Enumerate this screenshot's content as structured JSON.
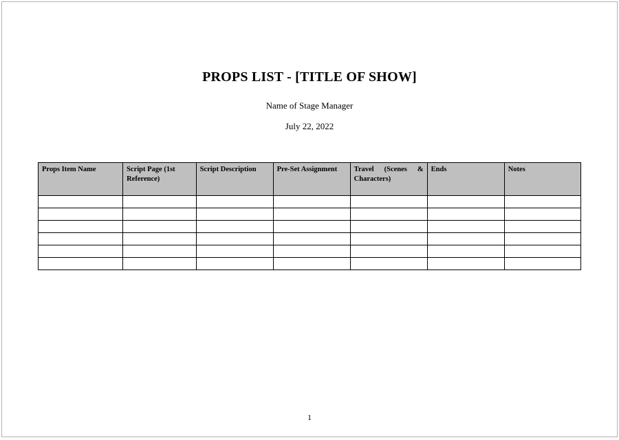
{
  "title": "PROPS LIST - [TITLE OF SHOW]",
  "subtitle": "Name of Stage Manager",
  "date": "July 22, 2022",
  "page_number": "1",
  "table": {
    "type": "table",
    "header_background": "#bfbfbf",
    "border_color": "#000000",
    "background_color": "#ffffff",
    "header_fontsize": 10.5,
    "header_fontweight": "bold",
    "columns": [
      {
        "label": "Props Item Name",
        "width_pct": 15.6
      },
      {
        "label": "Script Page (1st Reference)",
        "width_pct": 13.5
      },
      {
        "label": "Script Description",
        "width_pct": 14.2
      },
      {
        "label": "Pre-Set Assignment",
        "width_pct": 14.2
      },
      {
        "label": "Travel (Scenes & Characters)",
        "width_pct": 14.2,
        "justify": true
      },
      {
        "label": "Ends",
        "width_pct": 14.2
      },
      {
        "label": "Notes",
        "width_pct": 14.1
      }
    ],
    "rows": [
      [
        "",
        "",
        "",
        "",
        "",
        "",
        ""
      ],
      [
        "",
        "",
        "",
        "",
        "",
        "",
        ""
      ],
      [
        "",
        "",
        "",
        "",
        "",
        "",
        ""
      ],
      [
        "",
        "",
        "",
        "",
        "",
        "",
        ""
      ],
      [
        "",
        "",
        "",
        "",
        "",
        "",
        ""
      ],
      [
        "",
        "",
        "",
        "",
        "",
        "",
        ""
      ]
    ]
  }
}
